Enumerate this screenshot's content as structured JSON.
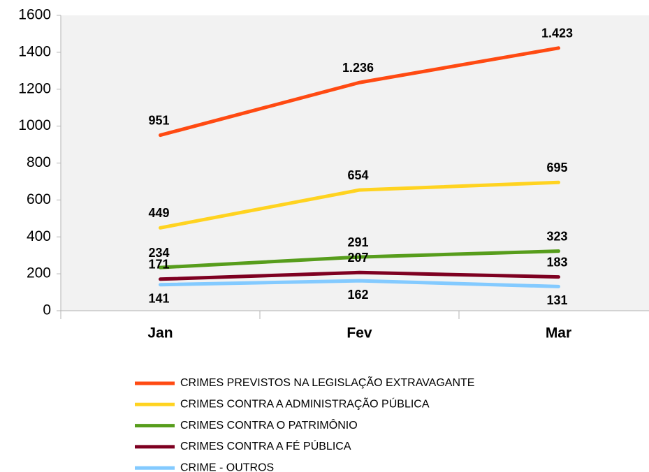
{
  "chart_data": {
    "type": "line",
    "categories": [
      "Jan",
      "Fev",
      "Mar"
    ],
    "series": [
      {
        "name": "CRIMES PREVISTOS NA LEGISLAÇÃO EXTRAVAGANTE",
        "color": "#ff4a12",
        "values": [
          951,
          1236,
          1423
        ],
        "value_labels": [
          "951",
          "1.236",
          "1.423"
        ]
      },
      {
        "name": "CRIMES CONTRA A ADMINISTRAÇÃO PÚBLICA",
        "color": "#ffd320",
        "values": [
          449,
          654,
          695
        ]
      },
      {
        "name": "CRIMES CONTRA O PATRIMÔNIO",
        "color": "#579d1c",
        "values": [
          234,
          291,
          323
        ]
      },
      {
        "name": "CRIMES CONTRA A FÉ PÚBLICA",
        "color": "#7e0021",
        "values": [
          171,
          207,
          183
        ]
      },
      {
        "name": "CRIME - OUTROS",
        "color": "#83caff",
        "values": [
          141,
          162,
          131
        ]
      }
    ],
    "ylim": [
      0,
      1600
    ],
    "yticks": [
      0,
      200,
      400,
      600,
      800,
      1000,
      1200,
      1400,
      1600
    ],
    "grid": false
  }
}
